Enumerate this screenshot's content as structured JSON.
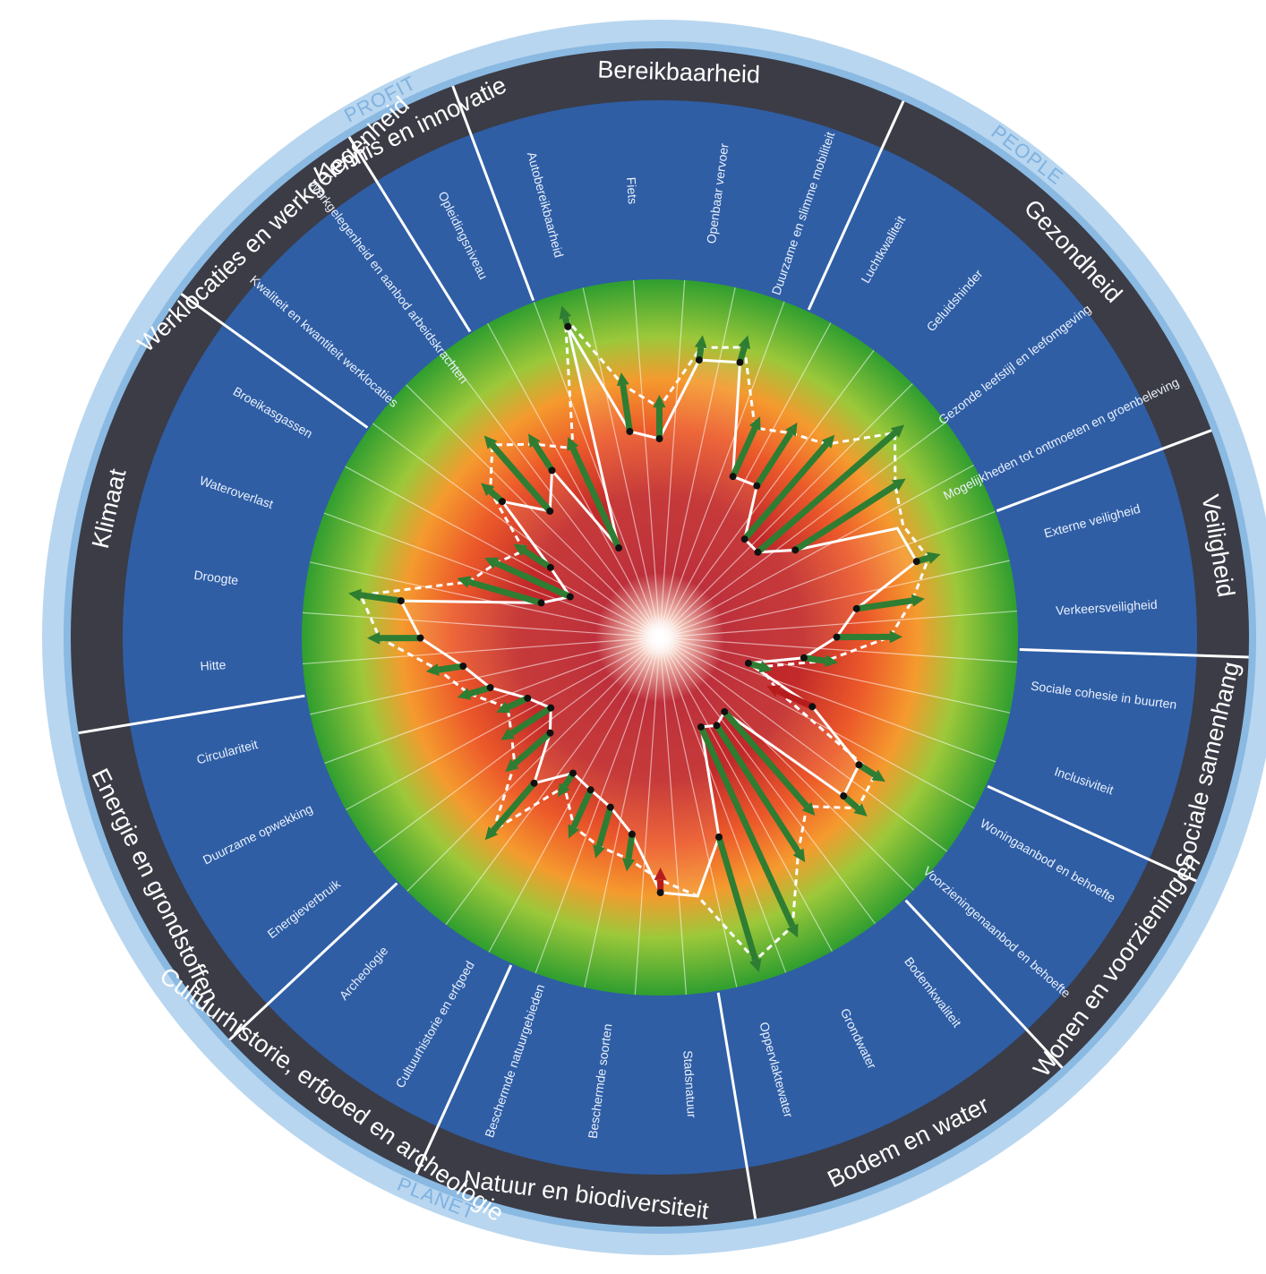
{
  "groups": [
    {
      "label": "PROFIT"
    },
    {
      "label": "PEOPLE"
    },
    {
      "label": "PLANET"
    }
  ],
  "themes": [
    {
      "label": "Bereikbaarheid",
      "indicators": [
        "Autobereikbaarheid",
        "Fiets",
        "Openbaar vervoer",
        "Duurzame en slimme mobiliteit"
      ]
    },
    {
      "label": "Gezondheid",
      "indicators": [
        "Luchtkwaliteit",
        "Geluidshinder",
        "Gezonde leefstijl en leefomgeving",
        "Mogelijkheden tot ontmoeten en groenbeleving"
      ]
    },
    {
      "label": "Veiligheid",
      "indicators": [
        "Externe veiligheid",
        "Verkeersveiligheid"
      ]
    },
    {
      "label": "Sociale samenhang",
      "indicators": [
        "Sociale cohesie in buurten",
        "Inclusiviteit"
      ]
    },
    {
      "label": "Wonen en voorzieningen",
      "indicators": [
        "Woningaanbod en behoefte",
        "Voorzieningenaanbod en behoefte"
      ]
    },
    {
      "label": "Bodem en water",
      "indicators": [
        "Bodemkwaliteit",
        "Grondwater",
        "Oppervlaktewater"
      ]
    },
    {
      "label": "Natuur en biodiversiteit",
      "indicators": [
        "Stadsnatuur",
        "Beschermde soorten",
        "Beschermde natuurgebieden"
      ]
    },
    {
      "label": "Cultuurhistorie, erfgoed en archeologie",
      "indicators": [
        "Cultuurhistorie en erfgoed",
        "Archeologie"
      ]
    },
    {
      "label": "Energie en grondstoffen",
      "indicators": [
        "Energieverbruik",
        "Duurzame opwekking",
        "Circulariteit"
      ]
    },
    {
      "label": "Klimaat",
      "indicators": [
        "Hitte",
        "Droogte",
        "Wateroverlast",
        "Broeikasgassen"
      ]
    },
    {
      "label": "Werklocaties en werkgelegenheid",
      "indicators": [
        "Kwaliteit en kwantiteit werklocaties",
        "Werkgelegenheid en aanbod arbeidskrachten"
      ]
    },
    {
      "label": "Kennis en innovatie",
      "indicators": [
        "Opleidingsniveau"
      ]
    }
  ],
  "colors": {
    "outer_ring": "#aecde9",
    "dark_ring": "#3b3c46",
    "indicator_ring": "#2f5ea5",
    "score_good": "#2f9e2f",
    "score_mid": "#f28a2a",
    "score_bad": "#b2222a",
    "arrow_up": "#2e7d32",
    "arrow_down": "#b71c1c"
  },
  "diagram": {
    "current_scores": [
      0.92,
      0.55,
      0.52,
      0.78,
      0.8,
      0.45,
      0.46,
      0.3,
      0.3,
      0.4,
      0.72,
      0.74,
      0.52,
      0.45,
      0.35,
      0.18,
      0.42,
      0.64,
      0.66,
      0.2,
      0.22,
      0.2,
      0.55,
      0.72,
      0.7,
      0.52,
      0.45,
      0.42,
      0.4,
      0.5,
      0.35,
      0.3,
      0.35,
      0.45,
      0.52,
      0.65,
      0.72,
      0.28,
      0.2,
      0.3,
      0.55,
      0.42,
      0.52,
      0.2
    ],
    "planned_scores": [
      0.95,
      0.7,
      0.62,
      0.82,
      0.85,
      0.62,
      0.66,
      0.7,
      0.88,
      0.78,
      0.74,
      0.78,
      0.7,
      0.62,
      0.42,
      0.22,
      0.3,
      0.7,
      0.72,
      0.6,
      0.7,
      0.9,
      0.96,
      0.72,
      0.66,
      0.6,
      0.58,
      0.55,
      0.45,
      0.7,
      0.5,
      0.45,
      0.42,
      0.52,
      0.6,
      0.78,
      0.85,
      0.52,
      0.46,
      0.4,
      0.6,
      0.7,
      0.62,
      0.55
    ]
  }
}
